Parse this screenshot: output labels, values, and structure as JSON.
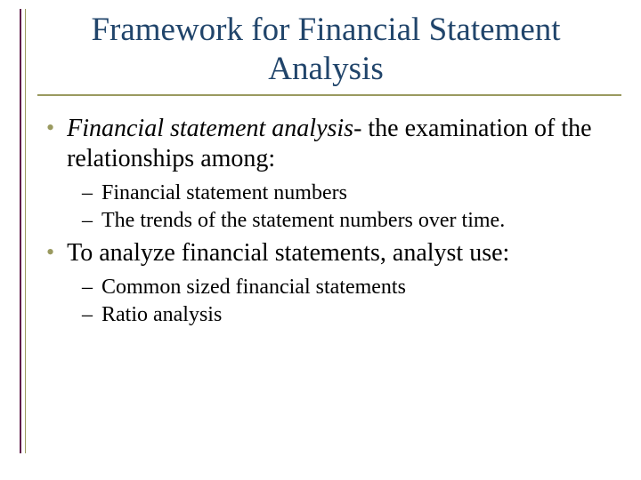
{
  "slide": {
    "title": "Framework for Financial Statement Analysis",
    "colors": {
      "title_text": "#21456b",
      "accent_line": "#9a9a60",
      "vline_dark": "#5f1a4a",
      "body_text": "#000000",
      "background": "#ffffff"
    },
    "typography": {
      "title_fontsize_pt": 28,
      "body_fontsize_pt": 21,
      "sub_fontsize_pt": 18,
      "font_family": "Times New Roman"
    },
    "bullets": [
      {
        "level": 1,
        "marker": "•",
        "italic_lead": "Financial statement analysis",
        "rest": "- the examination of the relationships among:"
      },
      {
        "level": 2,
        "marker": "–",
        "text": "Financial statement numbers"
      },
      {
        "level": 2,
        "marker": "–",
        "text": "The trends of the statement numbers over time."
      },
      {
        "level": 1,
        "marker": "•",
        "text": "To analyze financial statements, analyst use:"
      },
      {
        "level": 2,
        "marker": "–",
        "text": "Common sized financial statements"
      },
      {
        "level": 2,
        "marker": "–",
        "text": "Ratio analysis"
      }
    ]
  }
}
